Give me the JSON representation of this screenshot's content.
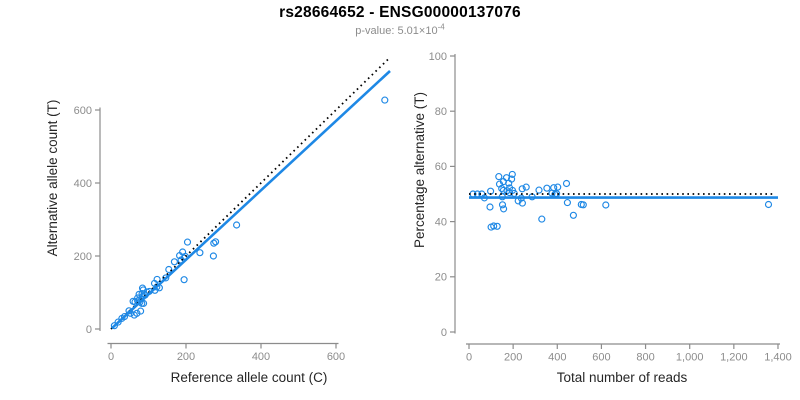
{
  "title": "rs28664652 - ENSG00000137076",
  "subtitle": {
    "label": "p-value:",
    "mantissa": "5.01",
    "multiplier": "×",
    "base": "10",
    "exponent": "-4"
  },
  "colors": {
    "accent_blue": "#1E88E5",
    "dotted_line": "#000000",
    "axis_gray": "#8c8c8c",
    "tick_label_gray": "#8c8c8c",
    "axis_title_color": "#262626",
    "title_color": "#000000",
    "subtitle_color": "#8c8c8c"
  },
  "chart_data": [
    {
      "type": "scatter",
      "panel": "left",
      "xlabel": "Reference allele count (C)",
      "ylabel": "Alternative allele count (T)",
      "xlim": [
        0,
        745
      ],
      "ylim": [
        0,
        745
      ],
      "grid": false,
      "marker": "open-circle",
      "xticks": [
        {
          "v": 0,
          "label": "0"
        },
        {
          "v": 200,
          "label": "200"
        },
        {
          "v": 400,
          "label": "400"
        },
        {
          "v": 600,
          "label": "600"
        }
      ],
      "yticks": [
        {
          "v": 0,
          "label": "0"
        },
        {
          "v": 200,
          "label": "200"
        },
        {
          "v": 400,
          "label": "400"
        },
        {
          "v": 600,
          "label": "600"
        }
      ],
      "points": [
        [
          9,
          9
        ],
        [
          19,
          19
        ],
        [
          29,
          29
        ],
        [
          36,
          34
        ],
        [
          52,
          43
        ],
        [
          48,
          50
        ],
        [
          62,
          38
        ],
        [
          69,
          43
        ],
        [
          79,
          49
        ],
        [
          59,
          76
        ],
        [
          64,
          74
        ],
        [
          71,
          77
        ],
        [
          77,
          74
        ],
        [
          82,
          70
        ],
        [
          71,
          85
        ],
        [
          76,
          80
        ],
        [
          87,
          70
        ],
        [
          75,
          95
        ],
        [
          84,
          88
        ],
        [
          83,
          97
        ],
        [
          88,
          96
        ],
        [
          91,
          93
        ],
        [
          84,
          112
        ],
        [
          86,
          107
        ],
        [
          96,
          101
        ],
        [
          102,
          103
        ],
        [
          117,
          106
        ],
        [
          122,
          115
        ],
        [
          116,
          125
        ],
        [
          123,
          136
        ],
        [
          129,
          113
        ],
        [
          146,
          140
        ],
        [
          154,
          163
        ],
        [
          195,
          135
        ],
        [
          169,
          184
        ],
        [
          183,
          201
        ],
        [
          187,
          189
        ],
        [
          195,
          194
        ],
        [
          198,
          199
        ],
        [
          191,
          211
        ],
        [
          204,
          238
        ],
        [
          237,
          209
        ],
        [
          273,
          200
        ],
        [
          274,
          235
        ],
        [
          279,
          239
        ],
        [
          335,
          285
        ],
        [
          730,
          627
        ]
      ],
      "lines": [
        {
          "name": "identity-line",
          "style": "dotted",
          "color": "#000000",
          "x1": 0,
          "y1": 0,
          "x2": 744,
          "y2": 744
        },
        {
          "name": "fit-line",
          "style": "solid",
          "color": "#1E88E5",
          "x1": 2,
          "y1": 1.9,
          "x2": 744,
          "y2": 706.8
        }
      ]
    },
    {
      "type": "scatter",
      "panel": "right",
      "xlabel": "Total number of reads",
      "ylabel": "Percentage alternative (T)",
      "xlim": [
        0,
        1400
      ],
      "ylim": [
        0,
        100
      ],
      "grid": false,
      "marker": "open-circle",
      "xticks": [
        {
          "v": 0,
          "label": "0"
        },
        {
          "v": 200,
          "label": "200"
        },
        {
          "v": 400,
          "label": "400"
        },
        {
          "v": 600,
          "label": "600"
        },
        {
          "v": 800,
          "label": "800"
        },
        {
          "v": 1000,
          "label": "1,000"
        },
        {
          "v": 1200,
          "label": "1,200"
        },
        {
          "v": 1400,
          "label": "1,400"
        }
      ],
      "yticks": [
        {
          "v": 0,
          "label": "0"
        },
        {
          "v": 20,
          "label": "20"
        },
        {
          "v": 40,
          "label": "40"
        },
        {
          "v": 60,
          "label": "60"
        },
        {
          "v": 80,
          "label": "80"
        },
        {
          "v": 100,
          "label": "100"
        }
      ],
      "points": [
        [
          18,
          50
        ],
        [
          38,
          50
        ],
        [
          58,
          50
        ],
        [
          70,
          48.6
        ],
        [
          95,
          45.3
        ],
        [
          98,
          51
        ],
        [
          100,
          38
        ],
        [
          112,
          38.4
        ],
        [
          128,
          38.3
        ],
        [
          135,
          56.3
        ],
        [
          138,
          53.6
        ],
        [
          148,
          52
        ],
        [
          151,
          49
        ],
        [
          152,
          46.1
        ],
        [
          156,
          54.5
        ],
        [
          156,
          51.3
        ],
        [
          157,
          44.6
        ],
        [
          170,
          55.9
        ],
        [
          172,
          51.2
        ],
        [
          180,
          53.9
        ],
        [
          184,
          52.2
        ],
        [
          184,
          50.5
        ],
        [
          196,
          57.1
        ],
        [
          193,
          55.4
        ],
        [
          197,
          51.3
        ],
        [
          205,
          50.2
        ],
        [
          223,
          47.5
        ],
        [
          237,
          48.5
        ],
        [
          241,
          51.9
        ],
        [
          259,
          52.5
        ],
        [
          242,
          46.7
        ],
        [
          286,
          49
        ],
        [
          317,
          51.4
        ],
        [
          330,
          40.9
        ],
        [
          353,
          52.1
        ],
        [
          384,
          52.3
        ],
        [
          376,
          50.3
        ],
        [
          389,
          49.9
        ],
        [
          397,
          50.1
        ],
        [
          402,
          52.5
        ],
        [
          442,
          53.8
        ],
        [
          446,
          46.9
        ],
        [
          473,
          42.3
        ],
        [
          509,
          46.2
        ],
        [
          518,
          46.1
        ],
        [
          620,
          46
        ],
        [
          1357,
          46.2
        ]
      ],
      "lines": [
        {
          "name": "expected-50pct-line",
          "style": "dotted",
          "color": "#000000",
          "x1": 0,
          "y1": 50,
          "x2": 1380,
          "y2": 50
        },
        {
          "name": "fit-line",
          "style": "solid",
          "color": "#1E88E5",
          "x1": 0,
          "y1": 48.7,
          "x2": 1400,
          "y2": 48.7
        }
      ]
    }
  ]
}
